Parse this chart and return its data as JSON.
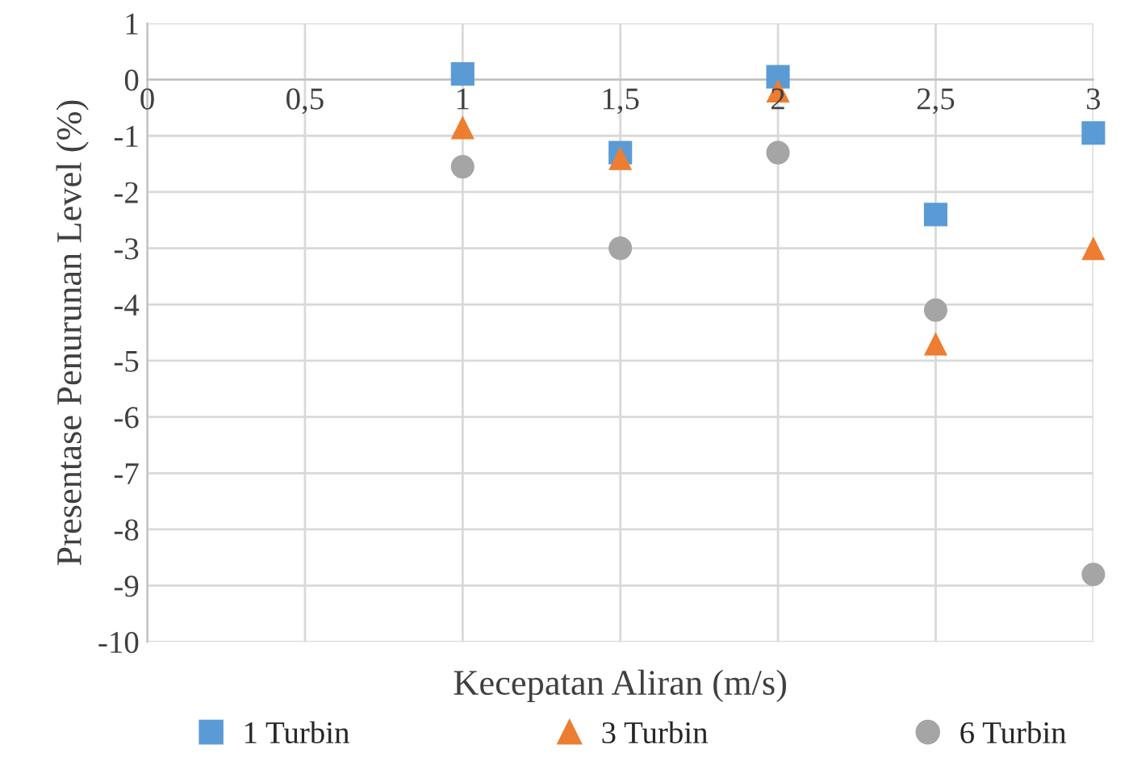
{
  "chart_data": {
    "type": "scatter",
    "xlabel": "Kecepatan Aliran (m/s)",
    "ylabel": "Presentase Penurunan Level (%)",
    "xlim": [
      0,
      3
    ],
    "xticks": [
      {
        "value": 0,
        "label": "0"
      },
      {
        "value": 0.5,
        "label": "0,5"
      },
      {
        "value": 1,
        "label": "1"
      },
      {
        "value": 1.5,
        "label": "1,5"
      },
      {
        "value": 2,
        "label": "2"
      },
      {
        "value": 2.5,
        "label": "2,5"
      },
      {
        "value": 3,
        "label": "3"
      }
    ],
    "ylim": [
      -10,
      1
    ],
    "yticks": [
      -10,
      -9,
      -8,
      -7,
      -6,
      -5,
      -4,
      -3,
      -2,
      -1,
      0,
      1
    ],
    "grid": true,
    "legend": "bottom",
    "series": [
      {
        "name": "1 Turbin",
        "color": "#5b9bd5",
        "marker": "square",
        "x": [
          1,
          1.5,
          2,
          2.5,
          3
        ],
        "values": [
          0.1,
          -1.3,
          0.05,
          -2.4,
          -0.95
        ]
      },
      {
        "name": "3 Turbin",
        "color": "#ed7d31",
        "marker": "triangle",
        "x": [
          1,
          1.5,
          2,
          2.5,
          3
        ],
        "values": [
          -0.85,
          -1.4,
          -0.2,
          -4.7,
          -3.0
        ]
      },
      {
        "name": "6 Turbin",
        "color": "#a5a5a5",
        "marker": "circle",
        "x": [
          1,
          1.5,
          2,
          2.5,
          3
        ],
        "values": [
          -1.55,
          -3.0,
          -1.3,
          -4.1,
          -8.8
        ]
      }
    ]
  }
}
